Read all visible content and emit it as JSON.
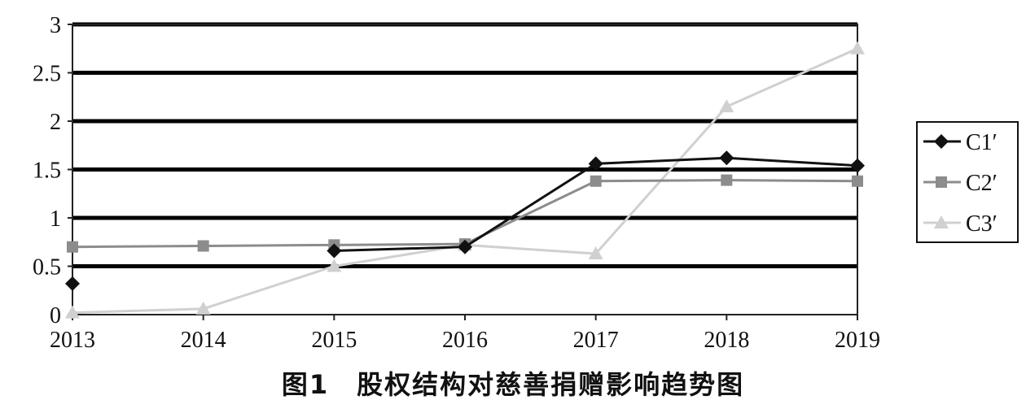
{
  "caption": "图1　股权结构对慈善捐赠影响趋势图",
  "chart_data": {
    "type": "line",
    "categories": [
      "2013",
      "2014",
      "2015",
      "2016",
      "2017",
      "2018",
      "2019"
    ],
    "ylim": [
      0,
      3
    ],
    "yticks": [
      "0",
      "0.5",
      "1",
      "1.5",
      "2",
      "2.5",
      "3"
    ],
    "grid": true,
    "legend": "right",
    "series": [
      {
        "name": "C1′",
        "values": [
          0.32,
          null,
          0.66,
          0.7,
          1.56,
          1.62,
          1.54
        ],
        "color": "#111111",
        "marker": "diamond"
      },
      {
        "name": "C2′",
        "values": [
          0.7,
          0.71,
          0.72,
          0.73,
          1.38,
          1.39,
          1.38
        ],
        "color": "#8c8c8c",
        "marker": "square"
      },
      {
        "name": "C3′",
        "values": [
          0.02,
          0.06,
          0.5,
          0.72,
          0.63,
          2.15,
          2.75
        ],
        "color": "#d0d0d0",
        "marker": "triangle"
      }
    ]
  }
}
